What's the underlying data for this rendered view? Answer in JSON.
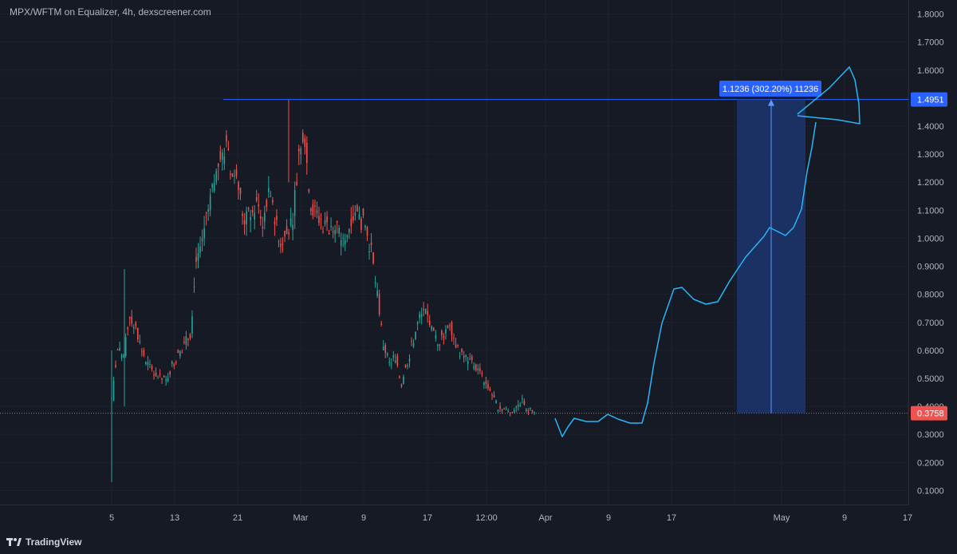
{
  "header": {
    "title": "MPX/WFTM on Equalizer, 4h, dexscreener.com"
  },
  "footer": {
    "brand": "TradingView"
  },
  "colors": {
    "background": "#161a25",
    "grid": "#1e222d",
    "up": "#26a69a",
    "down": "#ef5350",
    "accent": "#2962ff",
    "drawing": "#29b6f6",
    "measure_fill": "#1e3a7a"
  },
  "chart_data": {
    "type": "candlestick",
    "title": "MPX/WFTM on Equalizer, 4h, dexscreener.com",
    "ylim": [
      0.05,
      1.85
    ],
    "y_ticks": [
      "1.8000",
      "1.7000",
      "1.6000",
      "1.5000",
      "1.4000",
      "1.3000",
      "1.2000",
      "1.1000",
      "1.0000",
      "0.9000",
      "0.8000",
      "0.7000",
      "0.6000",
      "0.5000",
      "0.4000",
      "0.3000",
      "0.2000",
      "0.1000"
    ],
    "x_ticks": [
      "5",
      "13",
      "21",
      "Mar",
      "9",
      "17",
      "12:00",
      "Apr",
      "9",
      "17",
      "",
      "May",
      "9",
      "17"
    ],
    "price_series_close": [
      0.42,
      0.6,
      0.58,
      0.72,
      0.68,
      0.6,
      0.55,
      0.52,
      0.5,
      0.49,
      0.55,
      0.58,
      0.62,
      0.66,
      0.92,
      1.0,
      1.1,
      1.2,
      1.28,
      1.32,
      1.22,
      1.18,
      1.05,
      1.1,
      1.12,
      1.06,
      1.15,
      1.08,
      0.98,
      1.02,
      1.08,
      1.3,
      1.34,
      1.12,
      1.08,
      1.05,
      1.04,
      1.06,
      1.0,
      1.02,
      1.08,
      1.07,
      1.04,
      0.95,
      0.8,
      0.62,
      0.55,
      0.58,
      0.48,
      0.56,
      0.64,
      0.72,
      0.74,
      0.68,
      0.62,
      0.66,
      0.7,
      0.62,
      0.58,
      0.57,
      0.55,
      0.52,
      0.48,
      0.44,
      0.4,
      0.39,
      0.38,
      0.4,
      0.42,
      0.39,
      0.3758
    ],
    "high_price": 1.4951,
    "last_price": "0.3758",
    "high_label": "1.4951",
    "measure_label": "1.1236 (302.20%) 11236",
    "projection_path": [
      [
        0.36,
        0.37
      ],
      [
        0.31,
        0.38
      ],
      [
        0.36,
        0.39
      ],
      [
        0.39,
        0.4
      ],
      [
        0.36,
        0.41
      ],
      [
        0.35,
        0.42
      ],
      [
        0.37,
        0.43
      ],
      [
        0.55,
        0.44
      ],
      [
        0.75,
        0.45
      ],
      [
        0.85,
        0.46
      ],
      [
        0.78,
        0.47
      ],
      [
        0.9,
        0.48
      ],
      [
        1.0,
        0.49
      ],
      [
        1.06,
        0.5
      ],
      [
        1.02,
        0.51
      ],
      [
        1.15,
        0.52
      ],
      [
        1.3,
        0.53
      ],
      [
        1.43,
        0.54
      ]
    ]
  }
}
